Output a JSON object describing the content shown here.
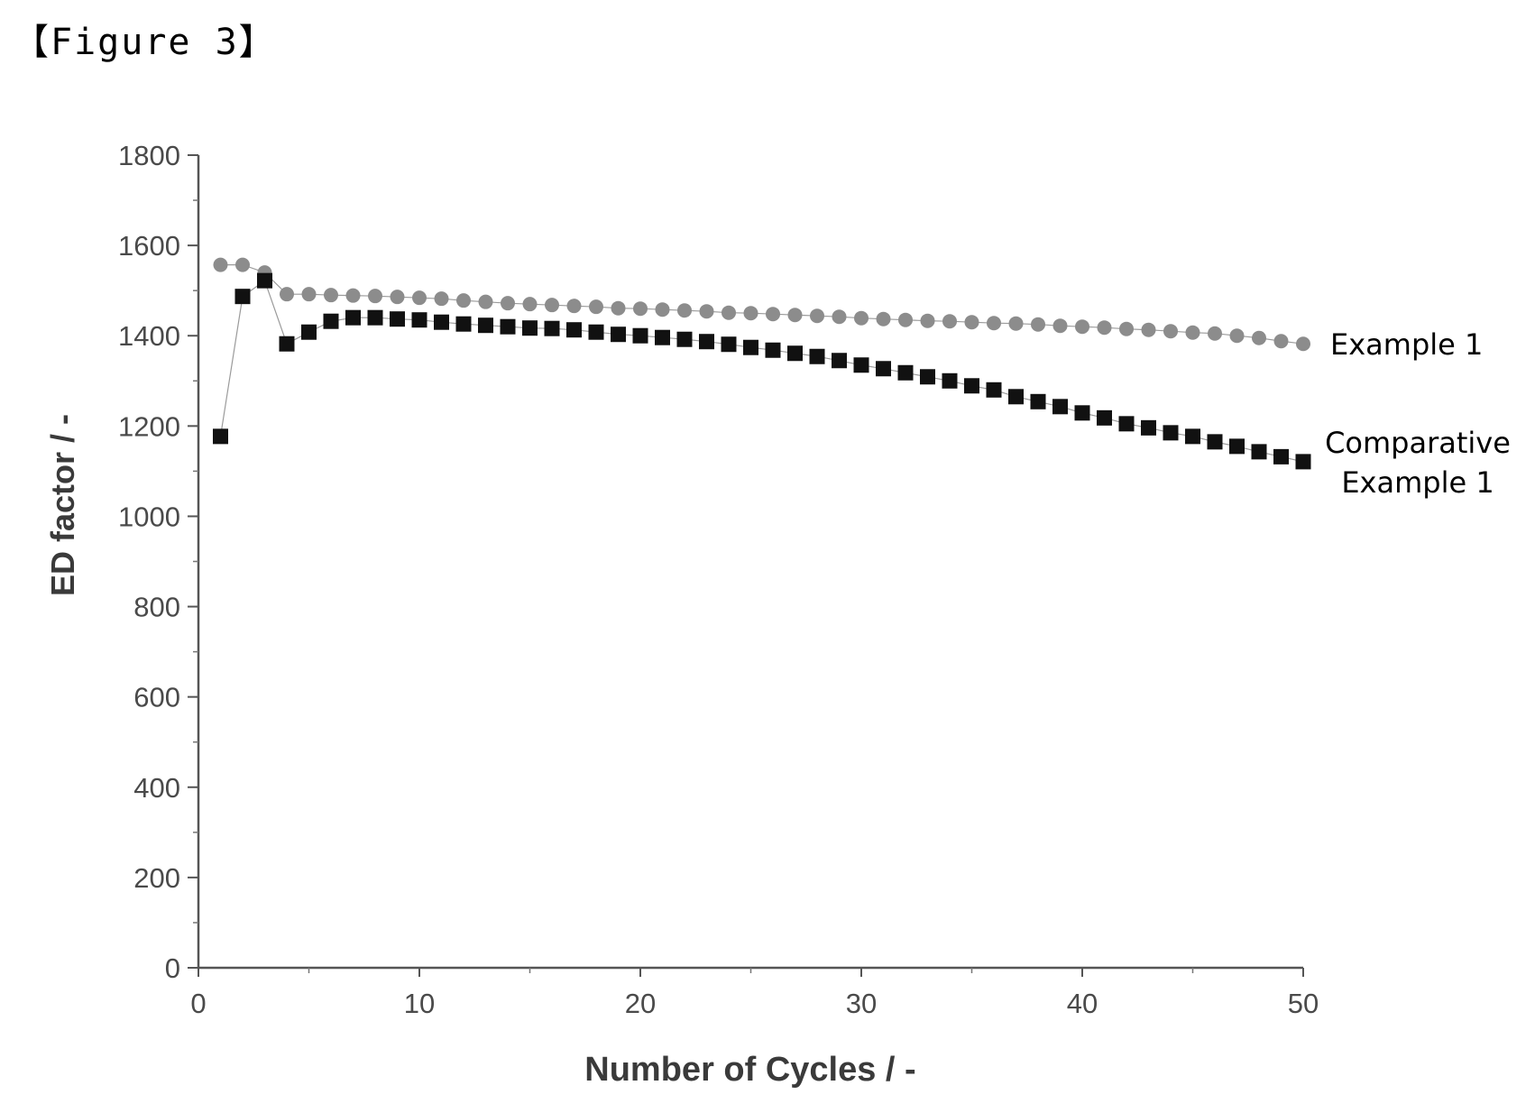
{
  "caption": "【Figure 3】",
  "chart_data": {
    "type": "scatter",
    "xlabel": "Number of Cycles / -",
    "ylabel": "ED factor / -",
    "xlim": [
      0,
      50
    ],
    "ylim": [
      0,
      1800
    ],
    "xticks": [
      0,
      10,
      20,
      30,
      40,
      50
    ],
    "yticks": [
      0,
      200,
      400,
      600,
      800,
      1000,
      1200,
      1400,
      1600,
      1800
    ],
    "grid": false,
    "series": [
      {
        "name": "Example 1",
        "marker": "circle",
        "color": "#8c8c8c",
        "x": [
          1,
          2,
          3,
          4,
          5,
          6,
          7,
          8,
          9,
          10,
          11,
          12,
          13,
          14,
          15,
          16,
          17,
          18,
          19,
          20,
          21,
          22,
          23,
          24,
          25,
          26,
          27,
          28,
          29,
          30,
          31,
          32,
          33,
          34,
          35,
          36,
          37,
          38,
          39,
          40,
          41,
          42,
          43,
          44,
          45,
          46,
          47,
          48,
          49,
          50
        ],
        "y": [
          1557,
          1557,
          1540,
          1492,
          1492,
          1490,
          1489,
          1488,
          1486,
          1484,
          1482,
          1478,
          1475,
          1472,
          1470,
          1468,
          1466,
          1464,
          1461,
          1460,
          1458,
          1456,
          1454,
          1451,
          1450,
          1448,
          1446,
          1444,
          1442,
          1439,
          1437,
          1435,
          1433,
          1432,
          1430,
          1428,
          1427,
          1425,
          1422,
          1420,
          1418,
          1415,
          1413,
          1410,
          1407,
          1405,
          1400,
          1395,
          1388,
          1382
        ]
      },
      {
        "name": "Comparative Example 1",
        "marker": "square",
        "color": "#111111",
        "x": [
          1,
          2,
          3,
          4,
          5,
          6,
          7,
          8,
          9,
          10,
          11,
          12,
          13,
          14,
          15,
          16,
          17,
          18,
          19,
          20,
          21,
          22,
          23,
          24,
          25,
          26,
          27,
          28,
          29,
          30,
          31,
          32,
          33,
          34,
          35,
          36,
          37,
          38,
          39,
          40,
          41,
          42,
          43,
          44,
          45,
          46,
          47,
          48,
          49,
          50
        ],
        "y": [
          1177,
          1487,
          1522,
          1382,
          1408,
          1432,
          1440,
          1440,
          1437,
          1435,
          1430,
          1426,
          1423,
          1420,
          1417,
          1416,
          1413,
          1408,
          1403,
          1400,
          1396,
          1392,
          1387,
          1381,
          1374,
          1368,
          1361,
          1354,
          1345,
          1335,
          1327,
          1318,
          1309,
          1300,
          1289,
          1280,
          1265,
          1254,
          1243,
          1229,
          1218,
          1205,
          1196,
          1185,
          1177,
          1165,
          1155,
          1143,
          1132,
          1121
        ]
      }
    ]
  }
}
